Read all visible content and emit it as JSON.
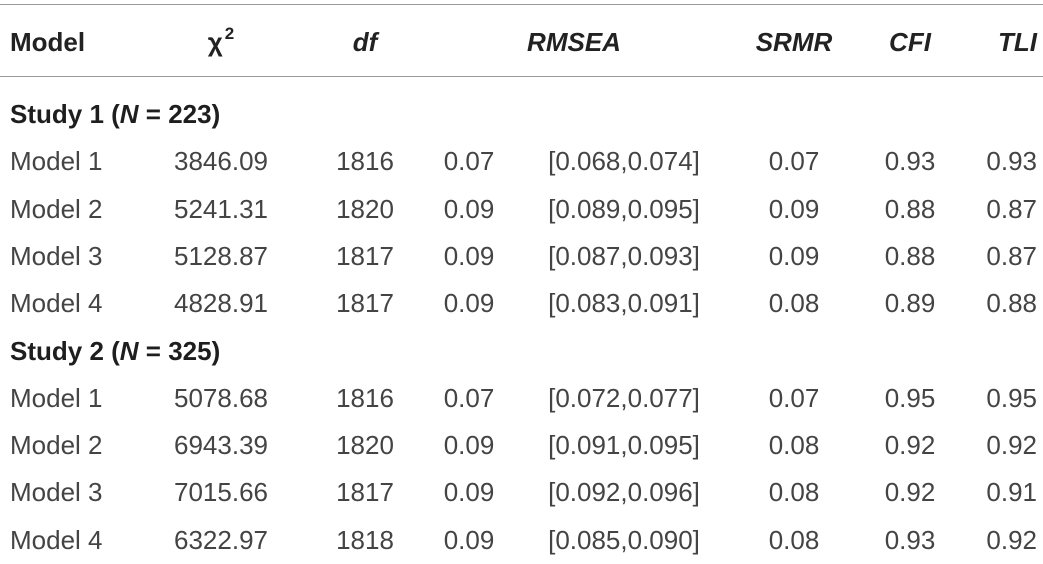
{
  "headers": {
    "model": "Model",
    "chi": "χ",
    "chi_sup": "2",
    "df": "df",
    "rmsea": "RMSEA",
    "srmr": "SRMR",
    "cfi": "CFI",
    "tli": "TLI"
  },
  "studies": [
    {
      "label_prefix": "Study 1 (",
      "label_n": "N",
      "label_suffix": " = 223)",
      "rows": [
        {
          "model": "Model 1",
          "chi": "3846.09",
          "df": "1816",
          "rmsea": "0.07",
          "ci": "[0.068,0.074]",
          "srmr": "0.07",
          "cfi": "0.93",
          "tli": "0.93"
        },
        {
          "model": "Model 2",
          "chi": "5241.31",
          "df": "1820",
          "rmsea": "0.09",
          "ci": "[0.089,0.095]",
          "srmr": "0.09",
          "cfi": "0.88",
          "tli": "0.87"
        },
        {
          "model": "Model 3",
          "chi": "5128.87",
          "df": "1817",
          "rmsea": "0.09",
          "ci": "[0.087,0.093]",
          "srmr": "0.09",
          "cfi": "0.88",
          "tli": "0.87"
        },
        {
          "model": "Model 4",
          "chi": "4828.91",
          "df": "1817",
          "rmsea": "0.09",
          "ci": "[0.083,0.091]",
          "srmr": "0.08",
          "cfi": "0.89",
          "tli": "0.88"
        }
      ]
    },
    {
      "label_prefix": "Study 2 (",
      "label_n": "N",
      "label_suffix": " = 325)",
      "rows": [
        {
          "model": "Model 1",
          "chi": "5078.68",
          "df": "1816",
          "rmsea": "0.07",
          "ci": "[0.072,0.077]",
          "srmr": "0.07",
          "cfi": "0.95",
          "tli": "0.95"
        },
        {
          "model": "Model 2",
          "chi": "6943.39",
          "df": "1820",
          "rmsea": "0.09",
          "ci": "[0.091,0.095]",
          "srmr": "0.08",
          "cfi": "0.92",
          "tli": "0.92"
        },
        {
          "model": "Model 3",
          "chi": "7015.66",
          "df": "1817",
          "rmsea": "0.09",
          "ci": "[0.092,0.096]",
          "srmr": "0.08",
          "cfi": "0.92",
          "tli": "0.91"
        },
        {
          "model": "Model 4",
          "chi": "6322.97",
          "df": "1818",
          "rmsea": "0.09",
          "ci": "[0.085,0.090]",
          "srmr": "0.08",
          "cfi": "0.93",
          "tli": "0.92"
        }
      ]
    }
  ]
}
